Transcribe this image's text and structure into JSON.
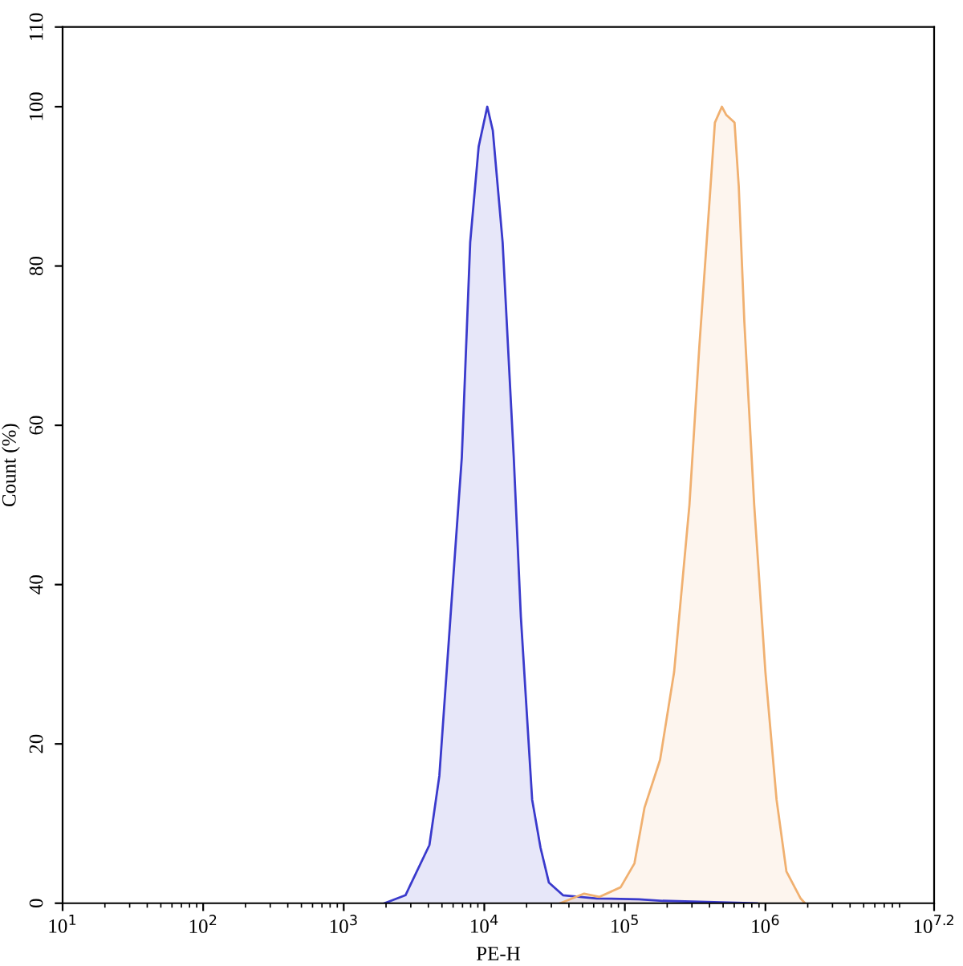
{
  "chart_data": {
    "type": "area",
    "xlabel": "PE-H",
    "ylabel": "Count (%)",
    "log": "x",
    "grid": false,
    "legend": false,
    "marker": "none",
    "line_style": "solid",
    "xlim": [
      10,
      15848932
    ],
    "ylim": [
      0,
      110
    ],
    "xticks": [
      {
        "value": 10,
        "label": "10$^{1}$"
      },
      {
        "value": 100,
        "label": "10$^{2}$"
      },
      {
        "value": 1000,
        "label": "10$^{3}$"
      },
      {
        "value": 10000,
        "label": "10$^{4}$"
      },
      {
        "value": 100000,
        "label": "10$^{5}$"
      },
      {
        "value": 1000000,
        "label": "10$^{6}$"
      },
      {
        "value": 15848932,
        "label": "10$^{7.2}$"
      }
    ],
    "yticks": [
      0,
      20,
      40,
      60,
      80,
      100,
      110
    ],
    "series": [
      {
        "color": "#3a3acc",
        "x": [
          1950,
          2750,
          4070,
          4790,
          5750,
          6920,
          7940,
          9120,
          10500,
          11500,
          13500,
          16200,
          18200,
          21900,
          25100,
          28800,
          36300,
          63100,
          126000,
          186000,
          871000
        ],
        "values": [
          0,
          1,
          7.3,
          16,
          36,
          56,
          83,
          95,
          100,
          97,
          83,
          56,
          36,
          13,
          7,
          2.6,
          1,
          0.6,
          0.5,
          0.3,
          0
        ]
      },
      {
        "color": "#f0b070",
        "x": [
          34700,
          51300,
          66100,
          93300,
          117000,
          138000,
          178000,
          224000,
          288000,
          339000,
          407000,
          437000,
          490000,
          525000,
          603000,
          646000,
          708000,
          832000,
          1000000,
          1200000,
          1410000,
          1780000,
          1910000
        ],
        "values": [
          0,
          1.2,
          0.8,
          2,
          5,
          12,
          18,
          29,
          50,
          70,
          90,
          98,
          100,
          99,
          98,
          90,
          73,
          50,
          29,
          13,
          4,
          0.6,
          0
        ]
      }
    ]
  }
}
